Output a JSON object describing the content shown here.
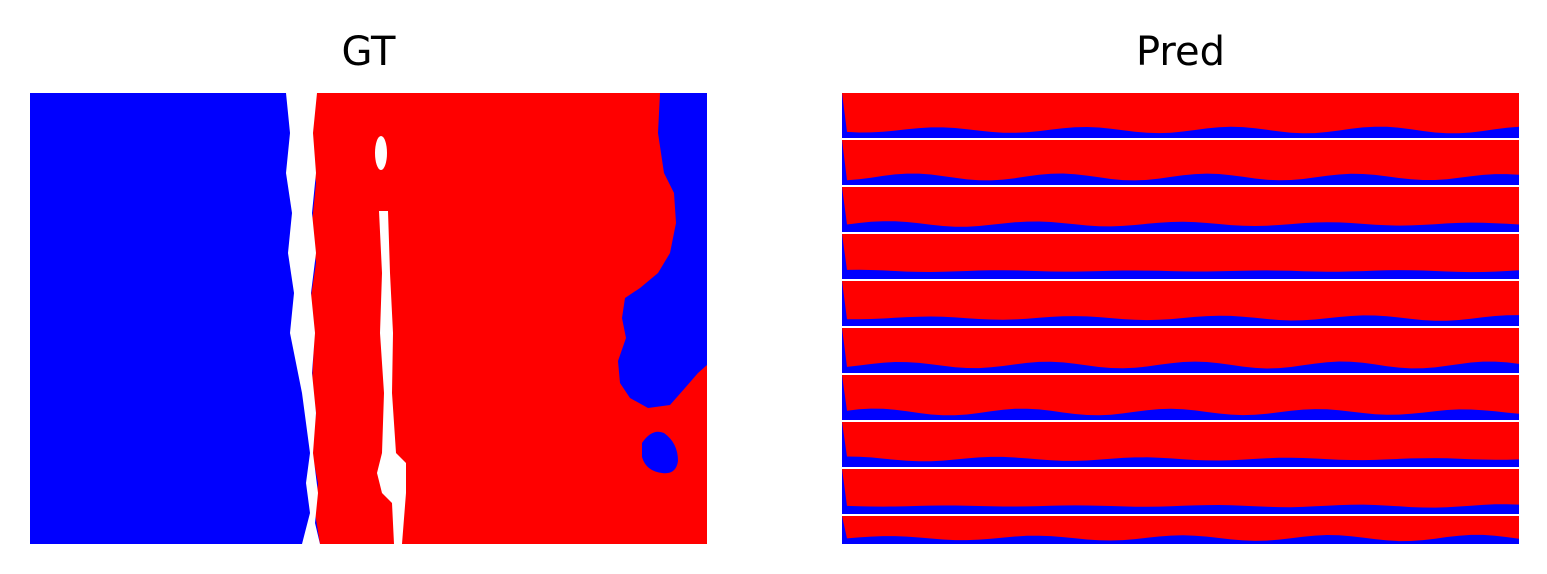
{
  "panels": [
    {
      "title": "GT"
    },
    {
      "title": "Pred"
    }
  ],
  "colors": {
    "class_a": "#0000ff",
    "class_b": "#ff0000",
    "background": "#ffffff"
  }
}
